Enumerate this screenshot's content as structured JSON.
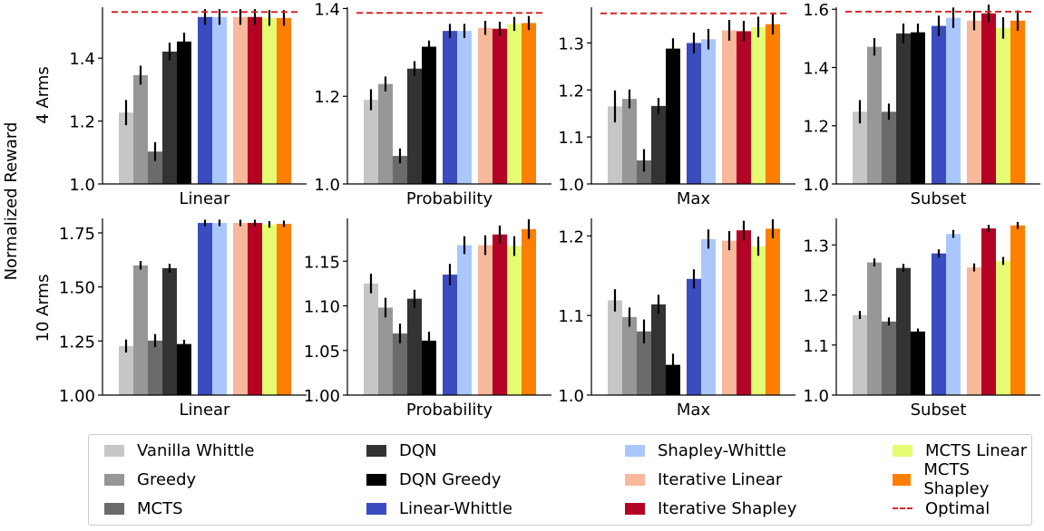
{
  "chart_data": {
    "type": "bar",
    "ylabel": "Normalized Reward",
    "methods": [
      "Vanilla Whittle",
      "Greedy",
      "MCTS",
      "DQN",
      "DQN Greedy",
      "Linear-Whittle",
      "Shapley-Whittle",
      "Iterative Linear",
      "Iterative Shapley",
      "MCTS Linear",
      "MCTS Shapley"
    ],
    "colors": [
      "#c6c6c6",
      "#979797",
      "#6b6b6b",
      "#333333",
      "#000000",
      "#3b4cc0",
      "#aac7fd",
      "#f7b89c",
      "#b40426",
      "#e6fc72",
      "#ff7f00"
    ],
    "optimal_label": "Optimal",
    "optimal_color": "#d62728",
    "rows": [
      "4 Arms",
      "10 Arms"
    ],
    "panels": [
      {
        "row": "4 Arms",
        "xlabel": "Linear",
        "ylim": [
          1.0,
          1.562
        ],
        "yticks": [
          1.0,
          1.2,
          1.4
        ],
        "tick_labels": [
          "1.0",
          "1.2",
          "1.4"
        ],
        "optimal": 1.547,
        "values": [
          1.227,
          1.346,
          1.103,
          1.421,
          1.453,
          1.531,
          1.531,
          1.531,
          1.531,
          1.528,
          1.528
        ],
        "errors": [
          0.04,
          0.03,
          0.03,
          0.028,
          0.028,
          0.025,
          0.025,
          0.025,
          0.025,
          0.025,
          0.025
        ]
      },
      {
        "row": "4 Arms",
        "xlabel": "Probability",
        "ylim": [
          1.0,
          1.403
        ],
        "yticks": [
          1.0,
          1.2,
          1.4
        ],
        "tick_labels": [
          "1.0",
          "1.2",
          "1.4"
        ],
        "optimal": 1.39,
        "values": [
          1.192,
          1.228,
          1.064,
          1.263,
          1.313,
          1.349,
          1.349,
          1.356,
          1.354,
          1.365,
          1.367
        ],
        "errors": [
          0.024,
          0.017,
          0.017,
          0.017,
          0.014,
          0.016,
          0.016,
          0.016,
          0.016,
          0.016,
          0.016
        ]
      },
      {
        "row": "4 Arms",
        "xlabel": "Max",
        "ylim": [
          1.0,
          1.376
        ],
        "yticks": [
          1.0,
          1.1,
          1.2,
          1.3
        ],
        "tick_labels": [
          "1.0",
          "1.1",
          "1.2",
          "1.3"
        ],
        "optimal": 1.363,
        "values": [
          1.165,
          1.181,
          1.05,
          1.166,
          1.288,
          1.3,
          1.308,
          1.327,
          1.325,
          1.334,
          1.34
        ],
        "errors": [
          0.034,
          0.02,
          0.024,
          0.017,
          0.022,
          0.022,
          0.022,
          0.022,
          0.022,
          0.022,
          0.022
        ]
      },
      {
        "row": "4 Arms",
        "xlabel": "Subset",
        "ylim": [
          1.0,
          1.607
        ],
        "yticks": [
          1.0,
          1.2,
          1.4,
          1.6
        ],
        "tick_labels": [
          "1.0",
          "1.2",
          "1.4",
          "1.6"
        ],
        "optimal": 1.592,
        "values": [
          1.248,
          1.471,
          1.248,
          1.517,
          1.521,
          1.543,
          1.571,
          1.561,
          1.586,
          1.536,
          1.561
        ],
        "errors": [
          0.04,
          0.03,
          0.028,
          0.034,
          0.03,
          0.035,
          0.035,
          0.033,
          0.03,
          0.037,
          0.035
        ]
      },
      {
        "row": "10 Arms",
        "xlabel": "Linear",
        "ylim": [
          1.0,
          1.817
        ],
        "yticks": [
          1.0,
          1.25,
          1.5,
          1.75
        ],
        "tick_labels": [
          "1.00",
          "1.25",
          "1.50",
          "1.75"
        ],
        "values": [
          1.227,
          1.6,
          1.252,
          1.587,
          1.236,
          1.796,
          1.796,
          1.796,
          1.796,
          1.789,
          1.792
        ],
        "errors": [
          0.03,
          0.02,
          0.03,
          0.02,
          0.02,
          0.015,
          0.015,
          0.015,
          0.015,
          0.015,
          0.015
        ]
      },
      {
        "row": "10 Arms",
        "xlabel": "Probability",
        "ylim": [
          1.0,
          1.198
        ],
        "yticks": [
          1.0,
          1.05,
          1.1,
          1.15
        ],
        "tick_labels": [
          "1.00",
          "1.05",
          "1.10",
          "1.15"
        ],
        "values": [
          1.125,
          1.098,
          1.069,
          1.108,
          1.061,
          1.135,
          1.168,
          1.168,
          1.18,
          1.167,
          1.186
        ],
        "errors": [
          0.011,
          0.011,
          0.011,
          0.01,
          0.01,
          0.012,
          0.01,
          0.011,
          0.01,
          0.011,
          0.011
        ]
      },
      {
        "row": "10 Arms",
        "xlabel": "Max",
        "ylim": [
          1.0,
          1.222
        ],
        "yticks": [
          1.0,
          1.1,
          1.2
        ],
        "tick_labels": [
          "1.0",
          "1.1",
          "1.2"
        ],
        "values": [
          1.119,
          1.098,
          1.08,
          1.114,
          1.038,
          1.146,
          1.196,
          1.194,
          1.207,
          1.187,
          1.209
        ],
        "errors": [
          0.014,
          0.012,
          0.015,
          0.012,
          0.014,
          0.012,
          0.012,
          0.012,
          0.012,
          0.012,
          0.012
        ]
      },
      {
        "row": "10 Arms",
        "xlabel": "Subset",
        "ylim": [
          1.0,
          1.353
        ],
        "yticks": [
          1.0,
          1.1,
          1.2,
          1.3
        ],
        "tick_labels": [
          "1.0",
          "1.1",
          "1.2",
          "1.3"
        ],
        "values": [
          1.16,
          1.265,
          1.147,
          1.254,
          1.127,
          1.283,
          1.322,
          1.255,
          1.333,
          1.268,
          1.339
        ],
        "errors": [
          0.008,
          0.008,
          0.008,
          0.008,
          0.006,
          0.008,
          0.008,
          0.008,
          0.007,
          0.008,
          0.007
        ]
      }
    ],
    "grid": false,
    "legend_position": "bottom"
  }
}
